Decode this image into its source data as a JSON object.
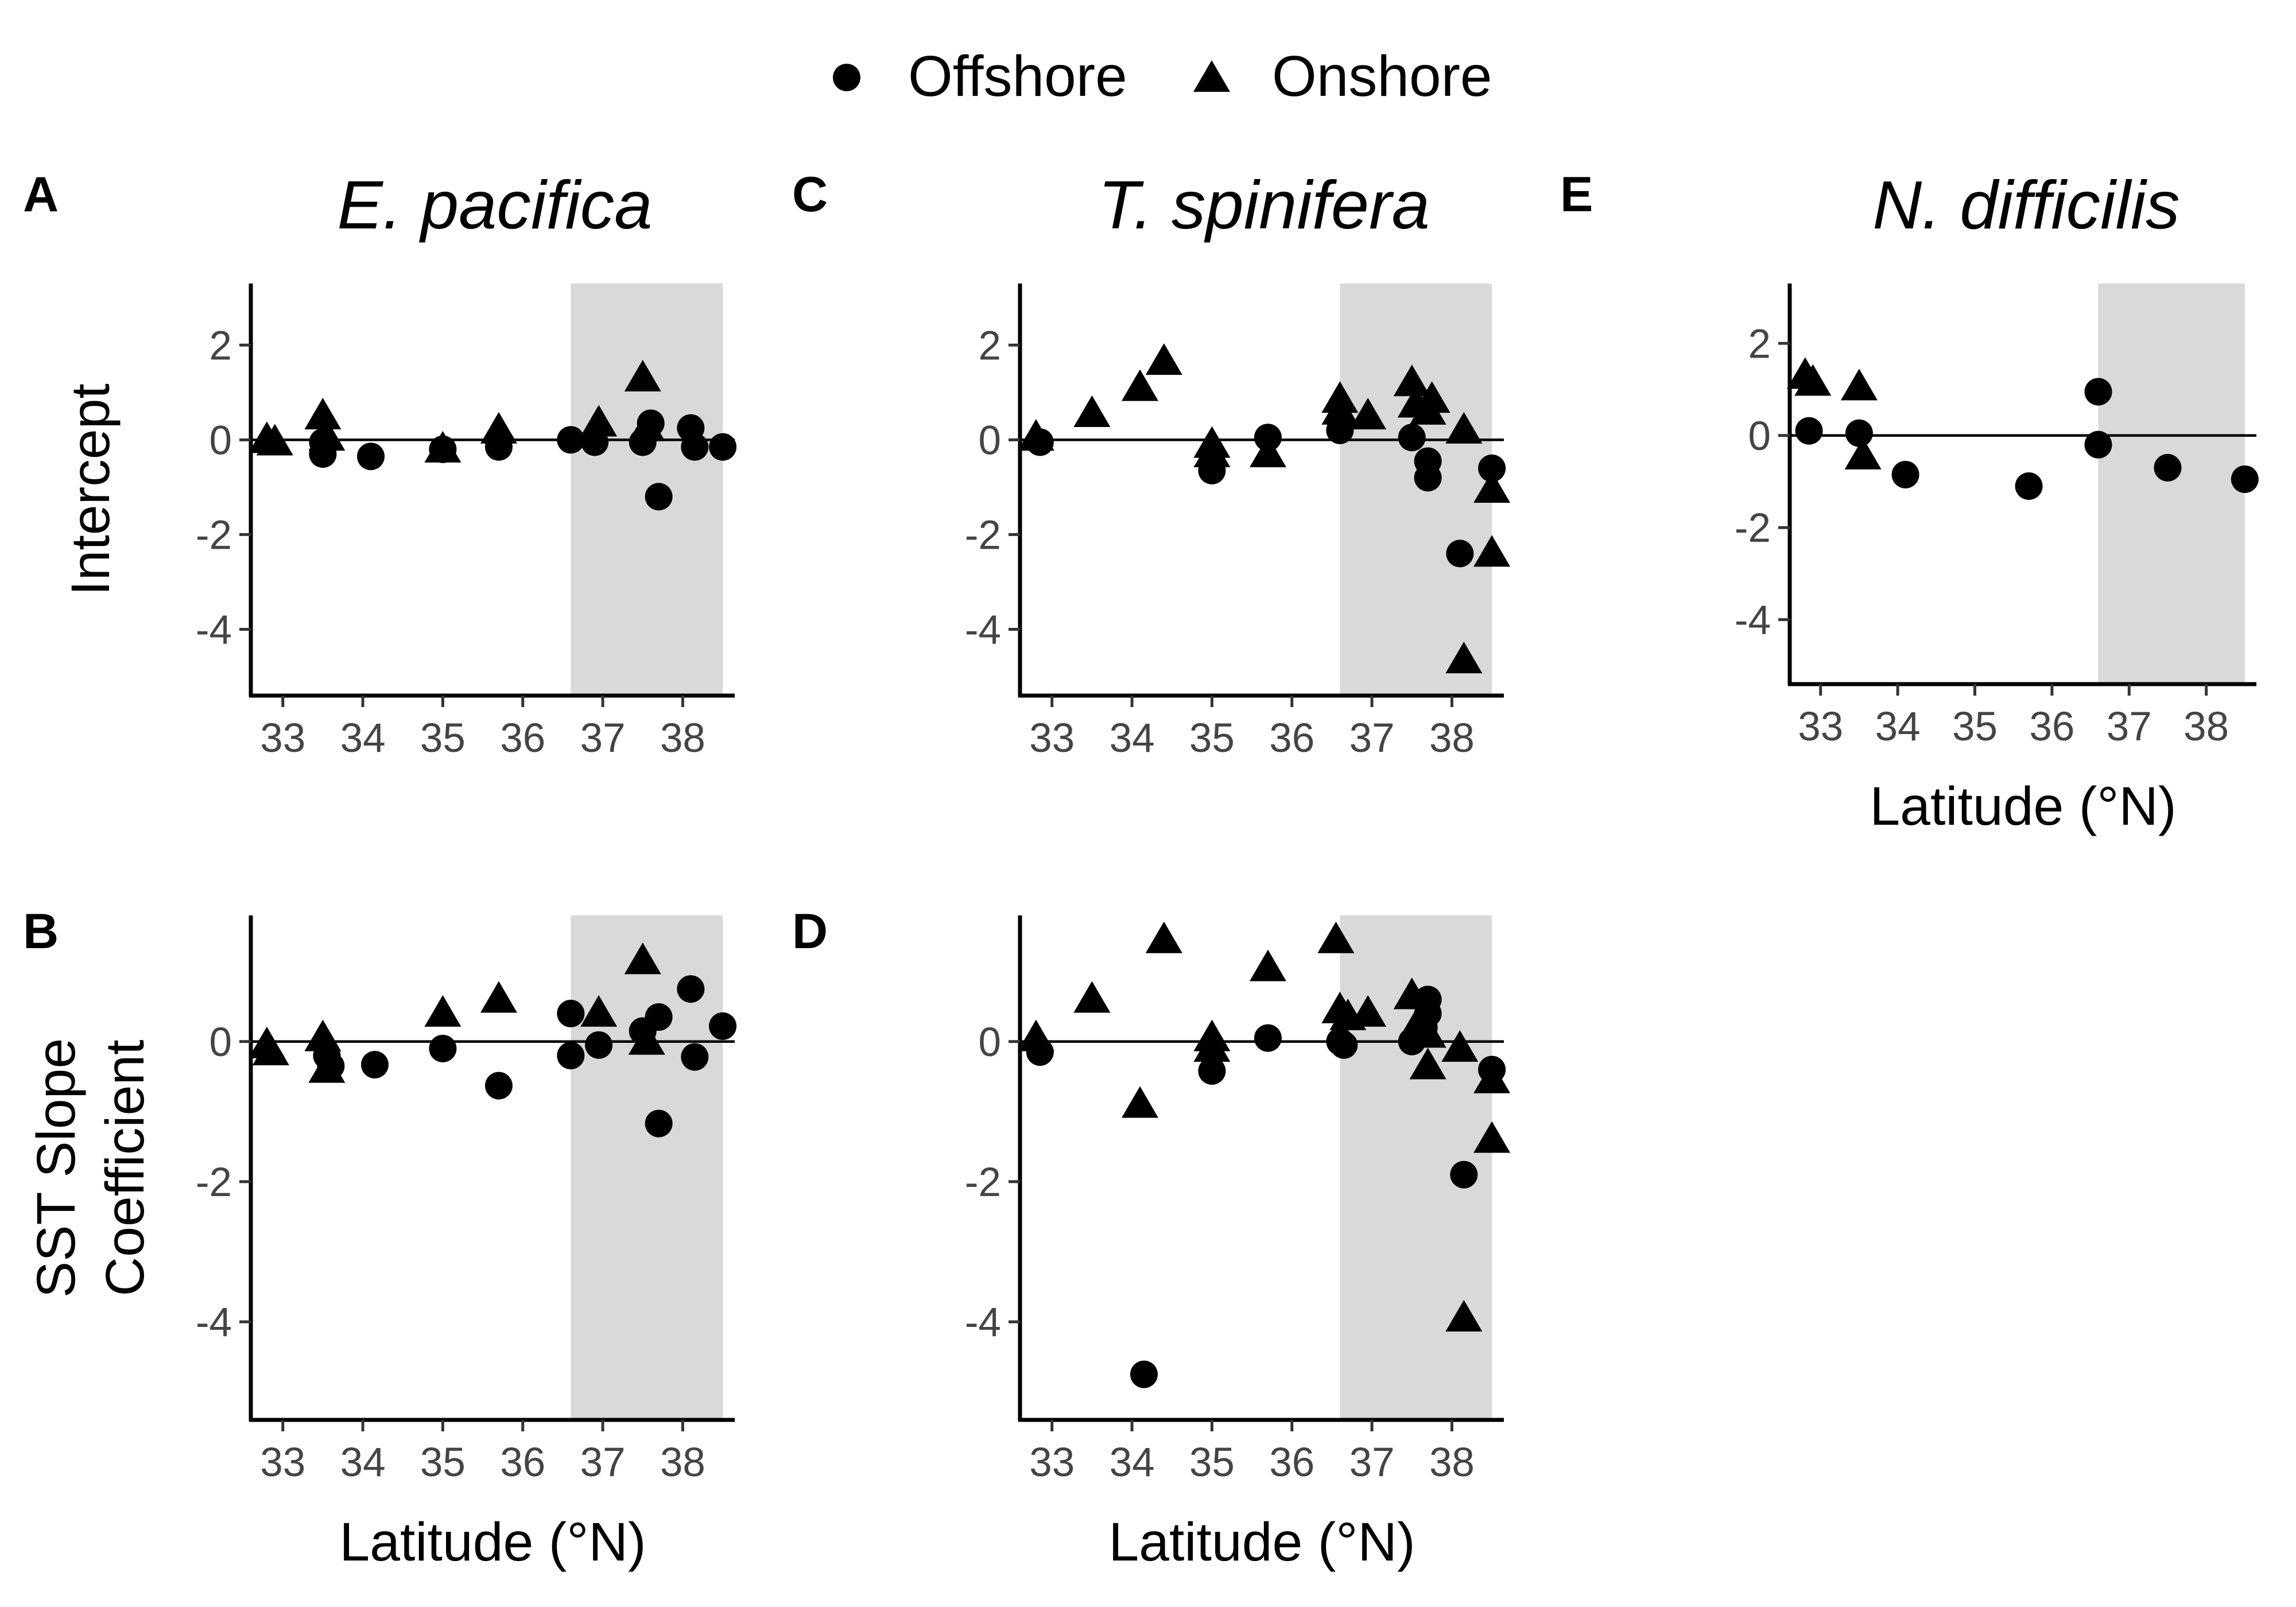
{
  "legend": {
    "items": [
      {
        "label": "Offshore",
        "shape": "circle"
      },
      {
        "label": "Onshore",
        "shape": "triangle"
      }
    ]
  },
  "style": {
    "shade_color": "#d9d9d9",
    "point_color": "#000000"
  },
  "chart_data": [
    {
      "id": "A",
      "letter": "A",
      "title": "E. pacifica",
      "type": "scatter",
      "ylabel": "Intercept",
      "xlabel": "",
      "xlim": [
        32.6,
        38.65
      ],
      "ylim": [
        -5.4,
        3.3
      ],
      "xticks": [
        33,
        34,
        35,
        36,
        37,
        38
      ],
      "yticks": [
        -4,
        -2,
        0,
        2
      ],
      "shade": [
        36.6,
        38.5
      ],
      "hline": 0,
      "series": [
        {
          "name": "Offshore",
          "shape": "circle",
          "points": [
            [
              33.5,
              -0.05
            ],
            [
              33.5,
              -0.3
            ],
            [
              34.1,
              -0.35
            ],
            [
              35.0,
              -0.2
            ],
            [
              35.7,
              -0.15
            ],
            [
              36.6,
              0.0
            ],
            [
              36.9,
              -0.05
            ],
            [
              37.5,
              -0.05
            ],
            [
              37.6,
              0.35
            ],
            [
              37.7,
              -1.2
            ],
            [
              38.1,
              0.25
            ],
            [
              38.15,
              -0.15
            ],
            [
              38.5,
              -0.15
            ]
          ]
        },
        {
          "name": "Onshore",
          "shape": "triangle",
          "points": [
            [
              32.8,
              0.0
            ],
            [
              32.9,
              -0.05
            ],
            [
              33.5,
              0.5
            ],
            [
              33.55,
              0.05
            ],
            [
              35.0,
              -0.2
            ],
            [
              35.7,
              0.2
            ],
            [
              36.95,
              0.35
            ],
            [
              37.5,
              1.3
            ],
            [
              37.55,
              0.25
            ]
          ]
        }
      ]
    },
    {
      "id": "B",
      "letter": "B",
      "title": "",
      "type": "scatter",
      "ylabel": "SST Slope Coefficient",
      "xlabel": "Latitude (°N)",
      "xlim": [
        32.6,
        38.65
      ],
      "ylim": [
        -5.4,
        1.8
      ],
      "xticks": [
        33,
        34,
        35,
        36,
        37,
        38
      ],
      "yticks": [
        -4,
        -2,
        0
      ],
      "shade": [
        36.6,
        38.5
      ],
      "hline": 0,
      "series": [
        {
          "name": "Offshore",
          "shape": "circle",
          "points": [
            [
              33.55,
              -0.2
            ],
            [
              33.6,
              -0.35
            ],
            [
              34.15,
              -0.33
            ],
            [
              35.0,
              -0.1
            ],
            [
              35.7,
              -0.63
            ],
            [
              36.6,
              0.4
            ],
            [
              36.6,
              -0.2
            ],
            [
              36.95,
              -0.05
            ],
            [
              37.5,
              0.15
            ],
            [
              37.7,
              0.35
            ],
            [
              37.7,
              -1.17
            ],
            [
              38.1,
              0.75
            ],
            [
              38.15,
              -0.22
            ],
            [
              38.5,
              0.22
            ]
          ]
        },
        {
          "name": "Onshore",
          "shape": "triangle",
          "points": [
            [
              32.8,
              -0.05
            ],
            [
              32.85,
              -0.15
            ],
            [
              33.5,
              0.05
            ],
            [
              33.55,
              -0.4
            ],
            [
              35.0,
              0.4
            ],
            [
              35.7,
              0.6
            ],
            [
              36.95,
              0.4
            ],
            [
              37.5,
              1.15
            ],
            [
              37.55,
              0.0
            ]
          ]
        }
      ]
    },
    {
      "id": "C",
      "letter": "C",
      "title": "T. spinifera",
      "type": "scatter",
      "ylabel": "",
      "xlabel": "",
      "xlim": [
        32.6,
        38.65
      ],
      "ylim": [
        -5.4,
        3.3
      ],
      "xticks": [
        33,
        34,
        35,
        36,
        37,
        38
      ],
      "yticks": [
        -4,
        -2,
        0,
        2
      ],
      "shade": [
        36.6,
        38.5
      ],
      "hline": 0,
      "series": [
        {
          "name": "Offshore",
          "shape": "circle",
          "points": [
            [
              32.85,
              -0.05
            ],
            [
              35.0,
              -0.65
            ],
            [
              35.7,
              0.05
            ],
            [
              36.6,
              0.2
            ],
            [
              37.5,
              0.05
            ],
            [
              37.7,
              -0.45
            ],
            [
              37.7,
              -0.8
            ],
            [
              38.1,
              -2.4
            ],
            [
              38.5,
              -0.6
            ]
          ]
        },
        {
          "name": "Onshore",
          "shape": "triangle",
          "points": [
            [
              32.8,
              0.05
            ],
            [
              33.5,
              0.55
            ],
            [
              34.1,
              1.1
            ],
            [
              34.4,
              1.65
            ],
            [
              35.0,
              -0.1
            ],
            [
              35.0,
              -0.3
            ],
            [
              35.7,
              -0.3
            ],
            [
              36.6,
              0.85
            ],
            [
              36.6,
              0.6
            ],
            [
              36.95,
              0.5
            ],
            [
              37.5,
              1.2
            ],
            [
              37.55,
              0.75
            ],
            [
              37.7,
              0.6
            ],
            [
              37.75,
              0.85
            ],
            [
              38.15,
              0.2
            ],
            [
              38.15,
              -4.65
            ],
            [
              38.5,
              -1.05
            ],
            [
              38.5,
              -2.4
            ]
          ]
        }
      ]
    },
    {
      "id": "D",
      "letter": "D",
      "title": "",
      "type": "scatter",
      "ylabel": "",
      "xlabel": "Latitude (°N)",
      "xlim": [
        32.6,
        38.65
      ],
      "ylim": [
        -5.4,
        1.8
      ],
      "xticks": [
        33,
        34,
        35,
        36,
        37,
        38
      ],
      "yticks": [
        -4,
        -2,
        0
      ],
      "shade": [
        36.6,
        38.5
      ],
      "hline": 0,
      "series": [
        {
          "name": "Offshore",
          "shape": "circle",
          "points": [
            [
              32.85,
              -0.15
            ],
            [
              34.15,
              -4.75
            ],
            [
              35.0,
              -0.42
            ],
            [
              35.7,
              0.05
            ],
            [
              36.6,
              0.0
            ],
            [
              36.65,
              -0.05
            ],
            [
              37.5,
              0.0
            ],
            [
              37.65,
              0.2
            ],
            [
              37.7,
              0.4
            ],
            [
              37.7,
              0.6
            ],
            [
              38.15,
              -1.9
            ],
            [
              38.5,
              -0.4
            ]
          ]
        },
        {
          "name": "Onshore",
          "shape": "triangle",
          "points": [
            [
              32.8,
              0.05
            ],
            [
              33.5,
              0.6
            ],
            [
              34.1,
              -0.9
            ],
            [
              34.4,
              1.45
            ],
            [
              35.0,
              0.05
            ],
            [
              35.0,
              -0.1
            ],
            [
              35.7,
              1.05
            ],
            [
              36.55,
              1.45
            ],
            [
              36.6,
              0.45
            ],
            [
              36.7,
              0.35
            ],
            [
              36.95,
              0.4
            ],
            [
              37.5,
              0.65
            ],
            [
              37.55,
              0.2
            ],
            [
              37.7,
              0.1
            ],
            [
              37.7,
              -0.35
            ],
            [
              38.1,
              -0.1
            ],
            [
              38.15,
              -3.95
            ],
            [
              38.5,
              -0.55
            ],
            [
              38.5,
              -1.4
            ]
          ]
        }
      ]
    },
    {
      "id": "E",
      "letter": "E",
      "title": "N. difficilis",
      "type": "scatter",
      "ylabel": "",
      "xlabel": "Latitude (°N)",
      "xlim": [
        32.6,
        38.65
      ],
      "ylim": [
        -5.4,
        3.3
      ],
      "xticks": [
        33,
        34,
        35,
        36,
        37,
        38
      ],
      "yticks": [
        -4,
        -2,
        0,
        2
      ],
      "shade": [
        36.6,
        38.5
      ],
      "hline": 0,
      "series": [
        {
          "name": "Offshore",
          "shape": "circle",
          "points": [
            [
              32.85,
              0.1
            ],
            [
              33.5,
              0.05
            ],
            [
              34.1,
              -0.85
            ],
            [
              35.7,
              -1.1
            ],
            [
              36.6,
              0.95
            ],
            [
              36.6,
              -0.2
            ],
            [
              37.5,
              -0.7
            ],
            [
              38.5,
              -0.95
            ]
          ]
        },
        {
          "name": "Onshore",
          "shape": "triangle",
          "points": [
            [
              32.8,
              1.3
            ],
            [
              32.9,
              1.15
            ],
            [
              33.5,
              1.05
            ],
            [
              33.55,
              -0.45
            ]
          ]
        }
      ]
    }
  ]
}
